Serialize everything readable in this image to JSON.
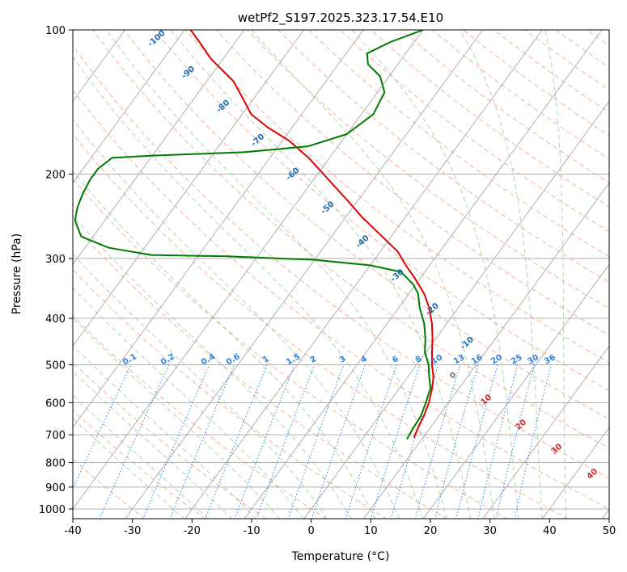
{
  "chart_data": {
    "type": "skew-t",
    "title": "wetPf2_S197.2025.323.17.54.E10",
    "xlabel": "Temperature (°C)",
    "ylabel": "Pressure (hPa)",
    "xlim": [
      -40,
      50
    ],
    "ylim_hpa": [
      1050,
      100
    ],
    "x_ticks": [
      -40,
      -30,
      -20,
      -10,
      0,
      10,
      20,
      30,
      40,
      50
    ],
    "y_ticks": [
      100,
      200,
      300,
      400,
      500,
      600,
      700,
      800,
      900,
      1000
    ],
    "colors": {
      "temperature": "#e00000",
      "dewpoint": "#007a00",
      "isotherm": "#b0b0b0",
      "dry_adiabat": "#f4a582",
      "moist_adiabat": "#8cc68c",
      "mixing_ratio": "#2b83e0",
      "isohume_label": "#1f6bb0",
      "theta_label": "#d62728",
      "grid": "#b0b0b0"
    },
    "temperature_profile": [
      {
        "p": 710,
        "t": 8.5
      },
      {
        "p": 680,
        "t": 8.0
      },
      {
        "p": 640,
        "t": 7.5
      },
      {
        "p": 600,
        "t": 6.7
      },
      {
        "p": 560,
        "t": 5.5
      },
      {
        "p": 530,
        "t": 4.3
      },
      {
        "p": 500,
        "t": 2.6
      },
      {
        "p": 470,
        "t": 1.0
      },
      {
        "p": 440,
        "t": -0.6
      },
      {
        "p": 410,
        "t": -2.5
      },
      {
        "p": 380,
        "t": -4.9
      },
      {
        "p": 355,
        "t": -7.5
      },
      {
        "p": 330,
        "t": -10.9
      },
      {
        "p": 310,
        "t": -14.0
      },
      {
        "p": 290,
        "t": -17.1
      },
      {
        "p": 270,
        "t": -21.5
      },
      {
        "p": 245,
        "t": -27.5
      },
      {
        "p": 230,
        "t": -31.0
      },
      {
        "p": 215,
        "t": -34.9
      },
      {
        "p": 200,
        "t": -39.0
      },
      {
        "p": 185,
        "t": -43.5
      },
      {
        "p": 170,
        "t": -49.0
      },
      {
        "p": 160,
        "t": -54.0
      },
      {
        "p": 150,
        "t": -58.5
      },
      {
        "p": 140,
        "t": -61.5
      },
      {
        "p": 128,
        "t": -65.5
      },
      {
        "p": 115,
        "t": -72.0
      },
      {
        "p": 105,
        "t": -76.5
      },
      {
        "p": 100,
        "t": -79.0
      }
    ],
    "dewpoint_profile": [
      {
        "p": 715,
        "td": 7.5
      },
      {
        "p": 680,
        "td": 7.2
      },
      {
        "p": 640,
        "td": 7.0
      },
      {
        "p": 600,
        "td": 6.2
      },
      {
        "p": 560,
        "td": 5.2
      },
      {
        "p": 530,
        "td": 3.6
      },
      {
        "p": 500,
        "td": 2.0
      },
      {
        "p": 470,
        "td": -0.2
      },
      {
        "p": 440,
        "td": -1.8
      },
      {
        "p": 410,
        "td": -3.8
      },
      {
        "p": 380,
        "td": -6.5
      },
      {
        "p": 355,
        "td": -8.5
      },
      {
        "p": 340,
        "td": -10.4
      },
      {
        "p": 320,
        "td": -14.0
      },
      {
        "p": 310,
        "td": -20.0
      },
      {
        "p": 302,
        "td": -30.0
      },
      {
        "p": 297,
        "td": -45.0
      },
      {
        "p": 295,
        "td": -58.0
      },
      {
        "p": 285,
        "td": -66.0
      },
      {
        "p": 270,
        "td": -72.0
      },
      {
        "p": 250,
        "td": -75.0
      },
      {
        "p": 235,
        "td": -76.2
      },
      {
        "p": 220,
        "td": -77.0
      },
      {
        "p": 205,
        "td": -77.5
      },
      {
        "p": 195,
        "td": -77.5
      },
      {
        "p": 185,
        "td": -76.5
      },
      {
        "p": 183,
        "td": -70.0
      },
      {
        "p": 180,
        "td": -55.0
      },
      {
        "p": 175,
        "td": -45.0
      },
      {
        "p": 165,
        "td": -40.0
      },
      {
        "p": 150,
        "td": -38.0
      },
      {
        "p": 135,
        "td": -38.8
      },
      {
        "p": 125,
        "td": -41.5
      },
      {
        "p": 118,
        "td": -45.0
      },
      {
        "p": 112,
        "td": -46.5
      },
      {
        "p": 106,
        "td": -44.0
      },
      {
        "p": 100,
        "td": -40.0
      }
    ],
    "isohume_labels": [
      -100,
      -90,
      -80,
      -70,
      -60,
      -50,
      -40,
      -30,
      -20,
      -10
    ],
    "mixing_ratio_labels": [
      "0.1",
      "0.2",
      "0.4",
      "0.6",
      "1",
      "1.5",
      "2",
      "3",
      "4",
      "6",
      "8",
      "10",
      "13",
      "16",
      "20",
      "25",
      "30",
      "36"
    ],
    "theta_labels": [
      10,
      20,
      30,
      40
    ],
    "zero_label": "0"
  }
}
